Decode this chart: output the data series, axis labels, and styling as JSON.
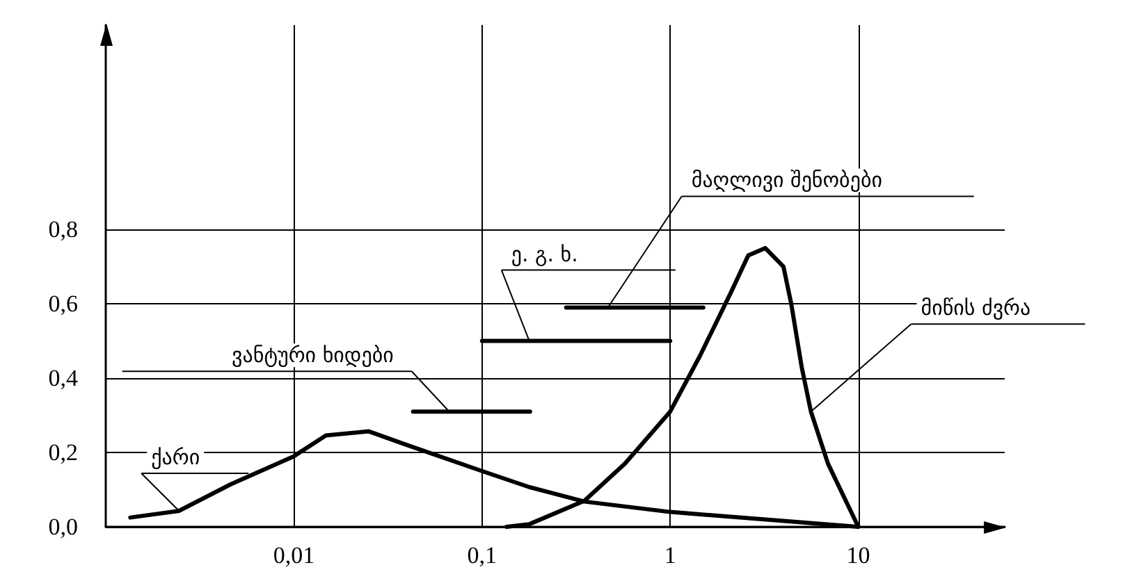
{
  "chart_data": {
    "type": "line",
    "log": "x",
    "grid": true,
    "marker": "none",
    "line_style": "solid",
    "legend": false,
    "xlim": [
      0.001,
      60
    ],
    "ylim": [
      0,
      1.35
    ],
    "xticks": [
      {
        "value": 0.01,
        "label": "0,01"
      },
      {
        "value": 0.1,
        "label": "0,1"
      },
      1,
      10
    ],
    "yticks": [
      {
        "value": 0,
        "label": "0,0"
      },
      {
        "value": 0.2,
        "label": "0,2"
      },
      {
        "value": 0.4,
        "label": "0,4"
      },
      {
        "value": 0.6,
        "label": "0,6"
      },
      {
        "value": 0.8,
        "label": "0,8"
      }
    ],
    "series": [
      {
        "name": "ქარი",
        "color": "#000000",
        "x": [
          0.00135,
          0.00245,
          0.0046,
          0.01,
          0.0148,
          0.025,
          0.04,
          0.1,
          0.178,
          0.35,
          1,
          10
        ],
        "values": [
          0.025,
          0.043,
          0.114,
          0.19,
          0.246,
          0.257,
          0.22,
          0.15,
          0.107,
          0.068,
          0.04,
          0
        ]
      },
      {
        "name": "მიწის ძვრა",
        "color": "#000000",
        "x": [
          0.135,
          0.178,
          0.35,
          0.575,
          1,
          1.44,
          2.1,
          2.6,
          3.2,
          4.0,
          4.4,
          5.0,
          5.6,
          6.9,
          10
        ],
        "values": [
          0,
          0.007,
          0.07,
          0.17,
          0.31,
          0.46,
          0.63,
          0.73,
          0.75,
          0.7,
          0.6,
          0.43,
          0.31,
          0.17,
          0
        ]
      },
      {
        "name": "ვანტური ხიდები",
        "color": "#000000",
        "x": [
          0.043,
          0.18
        ],
        "values": [
          0.31,
          0.31
        ]
      },
      {
        "name": "ე. გ. ხ.",
        "color": "#000000",
        "x": [
          0.1,
          1
        ],
        "values": [
          0.5,
          0.5
        ]
      },
      {
        "name": "მაღლივი შენობები",
        "color": "#000000",
        "x": [
          0.28,
          1.5
        ],
        "values": [
          0.59,
          0.59
        ]
      }
    ]
  }
}
